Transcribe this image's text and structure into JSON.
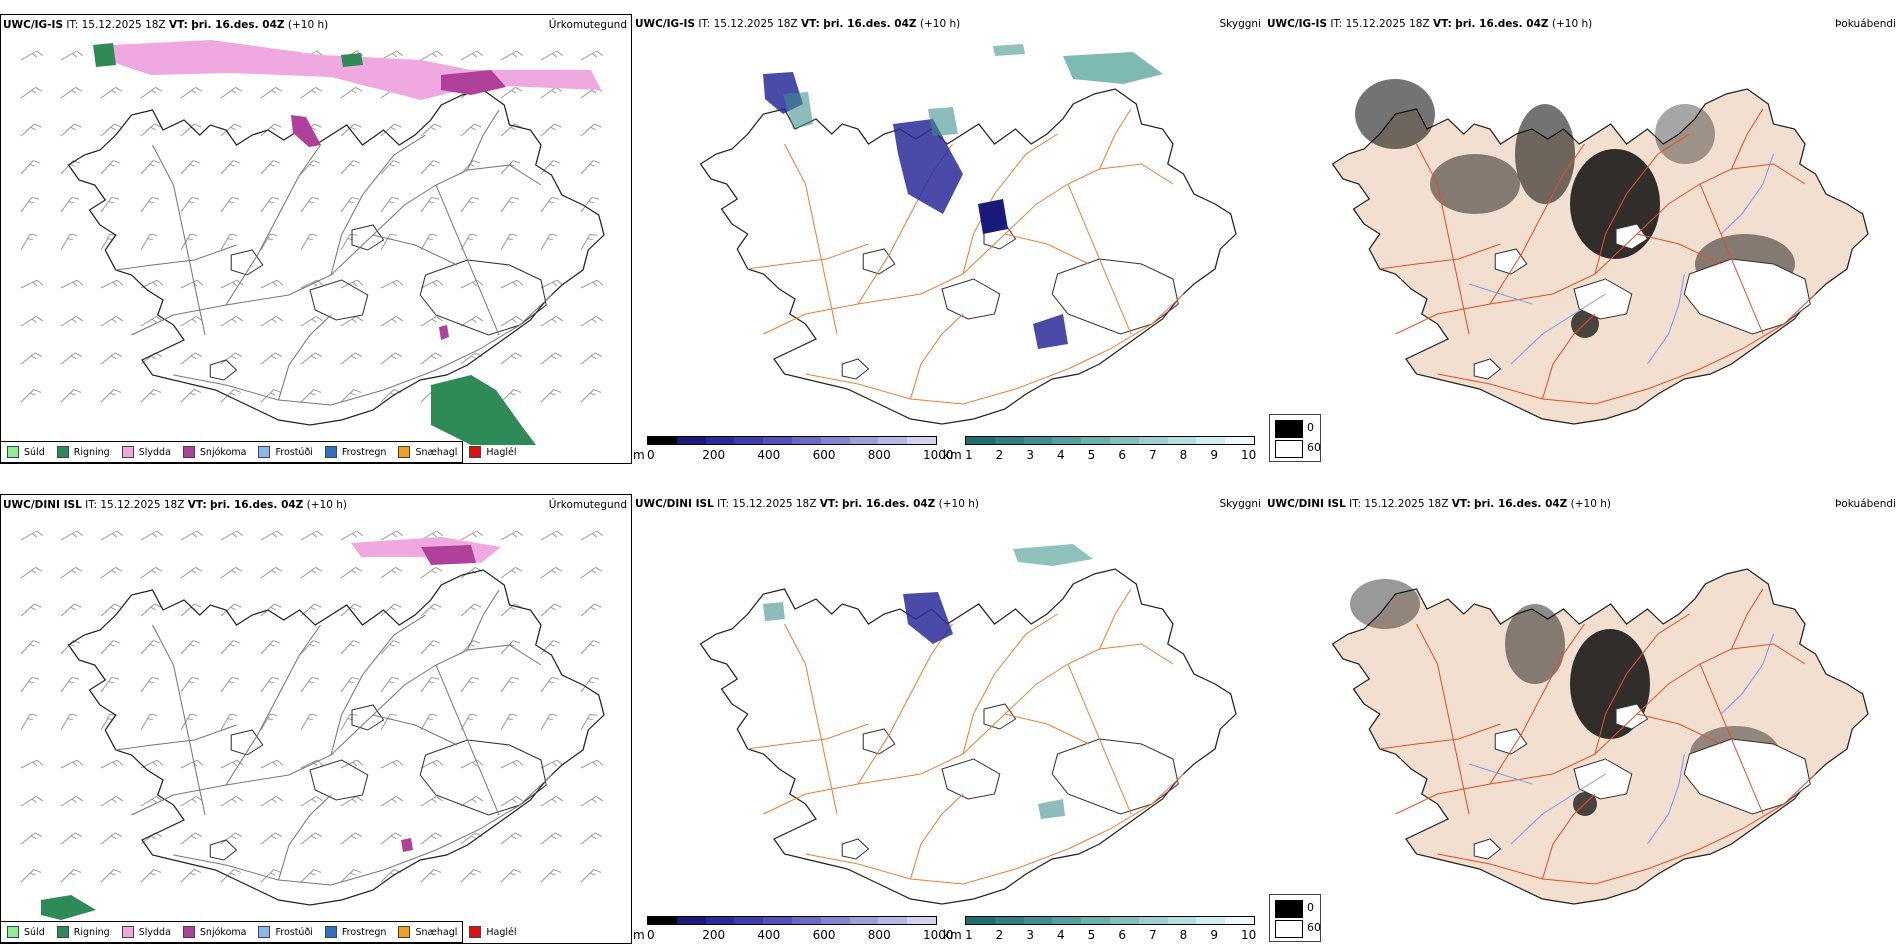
{
  "rows": [
    {
      "model": "UWC/IG-IS",
      "it_label": "IT:",
      "it_value": "15.12.2025 18Z",
      "vt_label": "VT:",
      "vt_value": "þri. 16.des. 04Z",
      "lead": "(+10 h)"
    },
    {
      "model": "UWC/DINI ISL",
      "it_label": "IT:",
      "it_value": "15.12.2025 18Z",
      "vt_label": "VT:",
      "vt_value": "þri. 16.des. 04Z",
      "lead": "(+10 h)"
    }
  ],
  "panel_titles": {
    "precip_type": "Úrkomutegund",
    "visibility": "Skyggni",
    "fog_index": "Þokuábendi"
  },
  "precip_legend": [
    {
      "label": "Súld",
      "color": "#90ee90"
    },
    {
      "label": "Rigning",
      "color": "#2e8b57"
    },
    {
      "label": "Slydda",
      "color": "#f0a8e0"
    },
    {
      "label": "Snjókoma",
      "color": "#b0409a"
    },
    {
      "label": "Frostúði",
      "color": "#87b8f0"
    },
    {
      "label": "Frostregn",
      "color": "#3070c0"
    },
    {
      "label": "Snæhagl",
      "color": "#f0a020"
    },
    {
      "label": "Haglél",
      "color": "#e01010"
    }
  ],
  "ceiling_scale": {
    "unit": "m",
    "ticks": [
      "0",
      "200",
      "400",
      "600",
      "800",
      "1000"
    ],
    "colors": [
      "#000000",
      "#1a1a7a",
      "#2a2a9a",
      "#3c3cac",
      "#5050b8",
      "#6a6ac4",
      "#8484d0",
      "#9e9edc",
      "#b8b8e6",
      "#d2d2f0"
    ]
  },
  "visibility_scale": {
    "unit": "km",
    "ticks": [
      "1",
      "2",
      "3",
      "4",
      "5",
      "6",
      "7",
      "8",
      "9",
      "10"
    ],
    "colors": [
      "#1f6f6f",
      "#2f7f7f",
      "#3f8f8f",
      "#54a0a0",
      "#6ab0b0",
      "#82c0c0",
      "#9ad0d0",
      "#b4e0e0",
      "#cfeeee",
      "#eafafa"
    ]
  },
  "fog_scale": {
    "max_label": "0",
    "min_label": "60"
  },
  "colors": {
    "land_fill": "#f3dfcf",
    "roads_orange": "#e8823a",
    "roads_red": "#e0502a",
    "rivers": "#8899ee",
    "rain": "#2e8b57",
    "sleet": "#f0a8e0",
    "snow": "#b0409a"
  }
}
